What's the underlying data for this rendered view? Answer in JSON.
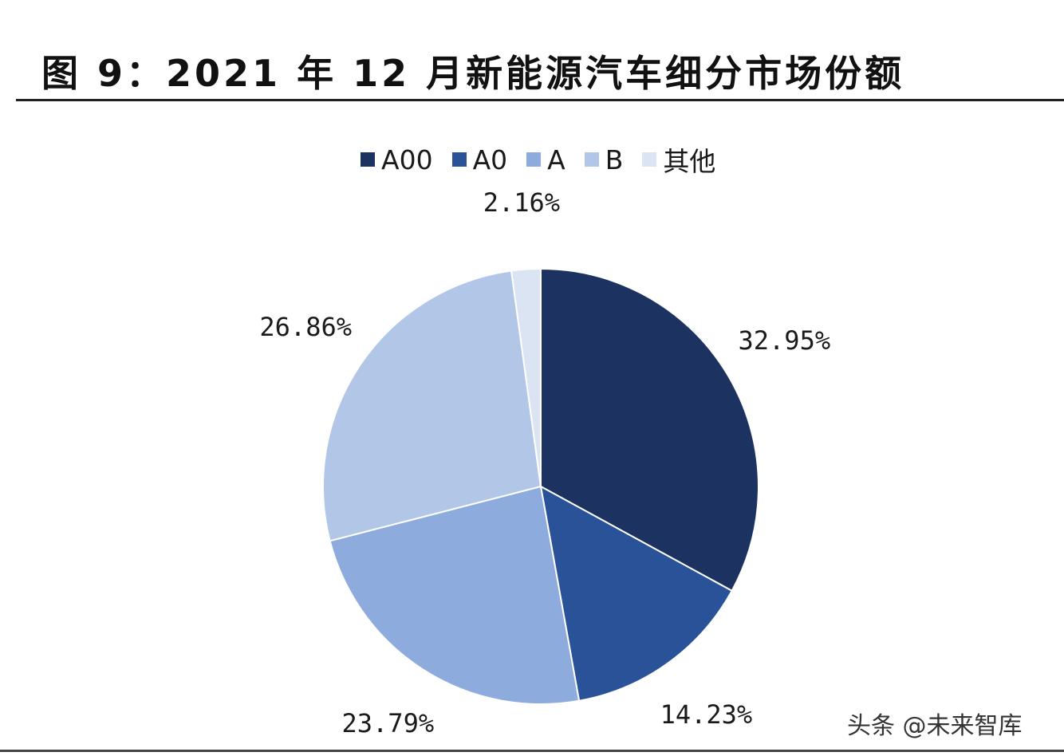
{
  "title": "图 9：2021 年 12 月新能源汽车细分市场份额",
  "watermark": "头条 @未来智库",
  "chart_data": {
    "type": "pie",
    "title": "",
    "legend_position": "top",
    "categories": [
      "A00",
      "A0",
      "A",
      "B",
      "其他"
    ],
    "values": [
      32.95,
      14.23,
      23.79,
      26.86,
      2.16
    ],
    "labels": [
      "32.95%",
      "14.23%",
      "23.79%",
      "26.86%",
      "2.16%"
    ],
    "colors": [
      "#1c3260",
      "#2a5298",
      "#8eabdd",
      "#b2c6e8",
      "#dbe4f3"
    ]
  }
}
